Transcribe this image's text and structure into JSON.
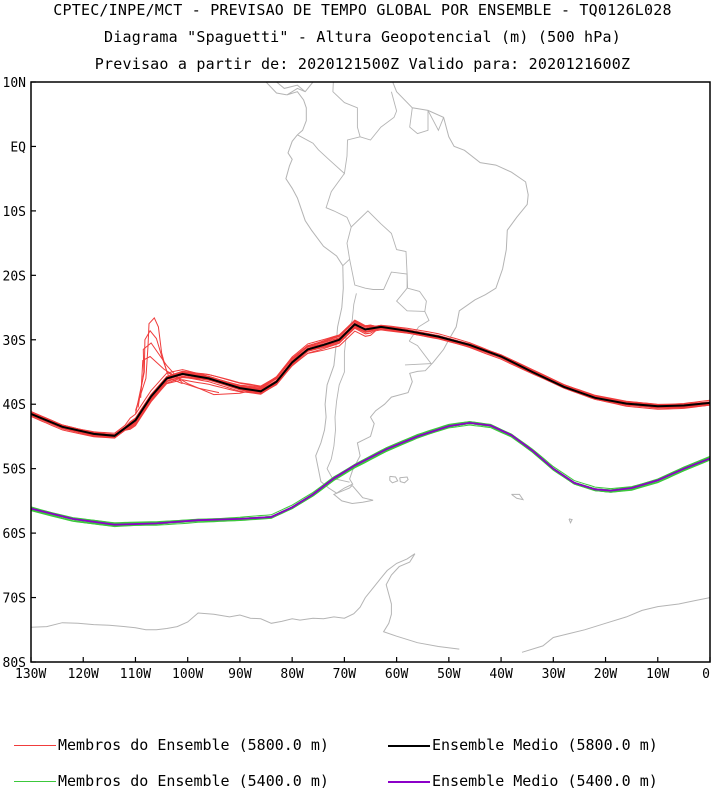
{
  "header": {
    "line1": "CPTEC/INPE/MCT - PREVISAO DE TEMPO GLOBAL POR ENSEMBLE - TQ0126L028",
    "line2": "Diagrama \"Spaguetti\" - Altura Geopotencial (m) (500 hPa)",
    "line3": "Previsao a partir de: 2020121500Z  Valido para: 2020121600Z"
  },
  "map": {
    "lon_range": [
      -130,
      0
    ],
    "lat_range": [
      -80,
      10
    ],
    "lat_ticks": [
      "10N",
      "EQ",
      "10S",
      "20S",
      "30S",
      "40S",
      "50S",
      "60S",
      "70S",
      "80S"
    ],
    "lon_ticks": [
      "130W",
      "120W",
      "110W",
      "100W",
      "90W",
      "80W",
      "70W",
      "60W",
      "50W",
      "40W",
      "30W",
      "20W",
      "10W",
      "0"
    ],
    "coastline_color": "#b4b4b4"
  },
  "chart_data": {
    "type": "line",
    "x_unit": "longitude (deg)",
    "y_unit": "latitude (deg)",
    "series": [
      {
        "name": "Ensemble Medio (5800.0 m)",
        "color": "#000000",
        "lon": [
          -130,
          -124,
          -118,
          -114,
          -110,
          -107,
          -104,
          -101,
          -96,
          -90,
          -86,
          -83,
          -80,
          -77,
          -74,
          -71,
          -68,
          -66,
          -63,
          -58,
          -52,
          -46,
          -40,
          -34,
          -28,
          -22,
          -16,
          -10,
          -5,
          0
        ],
        "lat": [
          -41.5,
          -43.5,
          -44.6,
          -44.9,
          -42.5,
          -38.8,
          -36.0,
          -35.3,
          -36.0,
          -37.5,
          -38.0,
          -36.5,
          -33.5,
          -31.5,
          -30.8,
          -30.0,
          -27.6,
          -28.4,
          -28.0,
          -28.6,
          -29.5,
          -30.8,
          -32.6,
          -35.0,
          -37.3,
          -39.0,
          -39.9,
          -40.3,
          -40.2,
          -39.8
        ]
      },
      {
        "name": "Ensemble Medio (5400.0 m)",
        "color": "#8c00c8",
        "lon": [
          -130,
          -122,
          -114,
          -106,
          -98,
          -90,
          -84,
          -80,
          -76,
          -72,
          -68,
          -62,
          -56,
          -50,
          -46,
          -42,
          -38,
          -34,
          -30,
          -26,
          -22,
          -19,
          -15,
          -10,
          -5,
          0
        ],
        "lat": [
          -56.2,
          -57.8,
          -58.7,
          -58.5,
          -58.0,
          -57.8,
          -57.5,
          -56.0,
          -54.0,
          -51.5,
          -49.5,
          -47.0,
          -45.0,
          -43.4,
          -42.9,
          -43.3,
          -44.8,
          -47.2,
          -50.0,
          -52.2,
          -53.2,
          -53.4,
          -53.0,
          -51.8,
          -50.0,
          -48.4
        ]
      }
    ],
    "members_5800": {
      "count_shown": 20,
      "color": "#f03c3c",
      "loop_feature": {
        "lon_range": [
          -110,
          -100
        ],
        "lat_range": [
          -37,
          -26
        ]
      }
    },
    "members_5400": {
      "count_shown": 20,
      "color": "#3cc83c"
    }
  },
  "legend": {
    "items": [
      {
        "label": "Membros do Ensemble (5800.0 m)",
        "color": "#f03c3c"
      },
      {
        "label": "Ensemble Medio (5800.0 m)",
        "color": "#000000"
      },
      {
        "label": "Membros do Ensemble (5400.0 m)",
        "color": "#3cc83c"
      },
      {
        "label": "Ensemble Medio (5400.0 m)",
        "color": "#8c00c8"
      }
    ]
  }
}
